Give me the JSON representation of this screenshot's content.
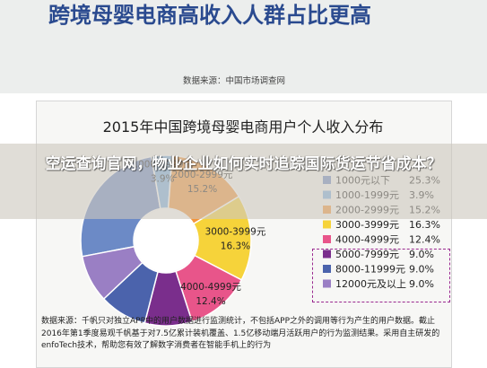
{
  "page": {
    "slide_title": "跨境母婴电商高收入人群占比更高",
    "source_top": "数据来源：中国市场调查网",
    "overlay_title": "空运查询官网，物业企业如何实时追踪国际货运节省成本？",
    "source_bottom": "数据来源：千帆只对独立APP中的用户数据进行监测统计，不包括APP之外的调用等行为产生的用户数据。截止2016年第1季度易观千帆基于对7.5亿累计装机覆盖、1.5亿移动端月活跃用户的行为监测结果。采用自主研发的enfoTech技术，帮助您有效了解数字消费者在智能手机上的行为"
  },
  "chart_data": {
    "type": "pie",
    "title": "2015年中国跨境母婴电商用户个人收入分布",
    "unit": "%",
    "categories": [
      "1000元以下",
      "1000-1999元",
      "2000-2999元",
      "3000-3999元",
      "4000-4999元",
      "5000-7999元",
      "8000-11999元",
      "12000元及以上"
    ],
    "values": [
      25.3,
      3.9,
      15.2,
      16.3,
      12.4,
      9.0,
      9.0,
      9.0
    ],
    "value_labels": [
      "25.3%",
      "3.9%",
      "15.2%",
      "16.3%",
      "12.4%",
      "9.0%",
      "9.0%",
      "9.0%"
    ],
    "slice_labels": [
      "",
      "1000-1999元|3.9%",
      "2000-2999元|15.2%",
      "3000-3999元|16.3%",
      "4000-4999元|12.4%",
      "",
      "",
      ""
    ],
    "colors": [
      "#6c8ac6",
      "#7cb0e4",
      "#f3953a",
      "#f6d33a",
      "#e8558a",
      "#7a2e8c",
      "#4b63ac",
      "#9a7fc4"
    ],
    "legend_position": "right",
    "highlight_legend": [
      "5000-7999元",
      "8000-11999元",
      "12000元及以上"
    ]
  }
}
